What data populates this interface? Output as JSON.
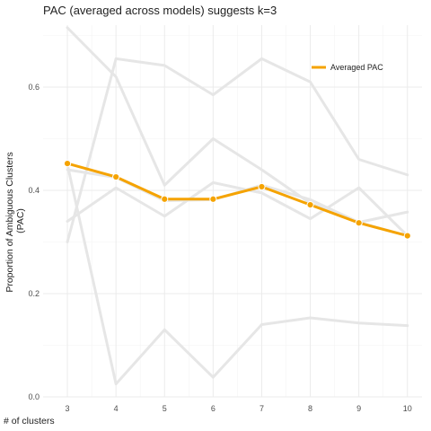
{
  "chart_data": {
    "type": "line",
    "title": "PAC (averaged across models) suggests k=3",
    "xlabel": "# of clusters",
    "ylabel_lines": [
      "Proportion of Ambiguous Clusters",
      "(PAC)"
    ],
    "x": [
      3,
      4,
      5,
      6,
      7,
      8,
      9,
      10
    ],
    "xlim": [
      2.5,
      10.3
    ],
    "ylim": [
      0,
      0.72
    ],
    "y_ticks": [
      0.0,
      0.2,
      0.4,
      0.6
    ],
    "y_tick_labels": [
      "0.0",
      "0.2",
      "0.4",
      "0.6"
    ],
    "x_tick_labels": [
      "3",
      "4",
      "5",
      "6",
      "7",
      "8",
      "9",
      "10"
    ],
    "grid": true,
    "legend_position": "top-right",
    "colors": {
      "highlight": "#f5a300",
      "background_series": "#e6e6e6",
      "grid_major": "#ebebeb",
      "grid_minor": "#f4f4f4"
    },
    "background_series": [
      {
        "values": [
          0.715,
          0.62,
          0.41,
          0.5,
          0.44,
          0.375,
          0.338,
          0.312
        ]
      },
      {
        "values": [
          0.3,
          0.655,
          0.642,
          0.585,
          0.655,
          0.61,
          0.46,
          0.43
        ]
      },
      {
        "values": [
          0.34,
          0.405,
          0.35,
          0.415,
          0.395,
          0.345,
          0.405,
          0.312
        ]
      },
      {
        "values": [
          0.45,
          0.025,
          0.13,
          0.038,
          0.14,
          0.153,
          0.143,
          0.138
        ]
      },
      {
        "values": [
          0.44,
          0.425,
          0.38,
          0.382,
          0.41,
          0.382,
          0.338,
          0.358
        ]
      }
    ],
    "series": [
      {
        "name": "Averaged PAC",
        "values": [
          0.452,
          0.426,
          0.383,
          0.383,
          0.407,
          0.372,
          0.337,
          0.312
        ]
      }
    ]
  }
}
